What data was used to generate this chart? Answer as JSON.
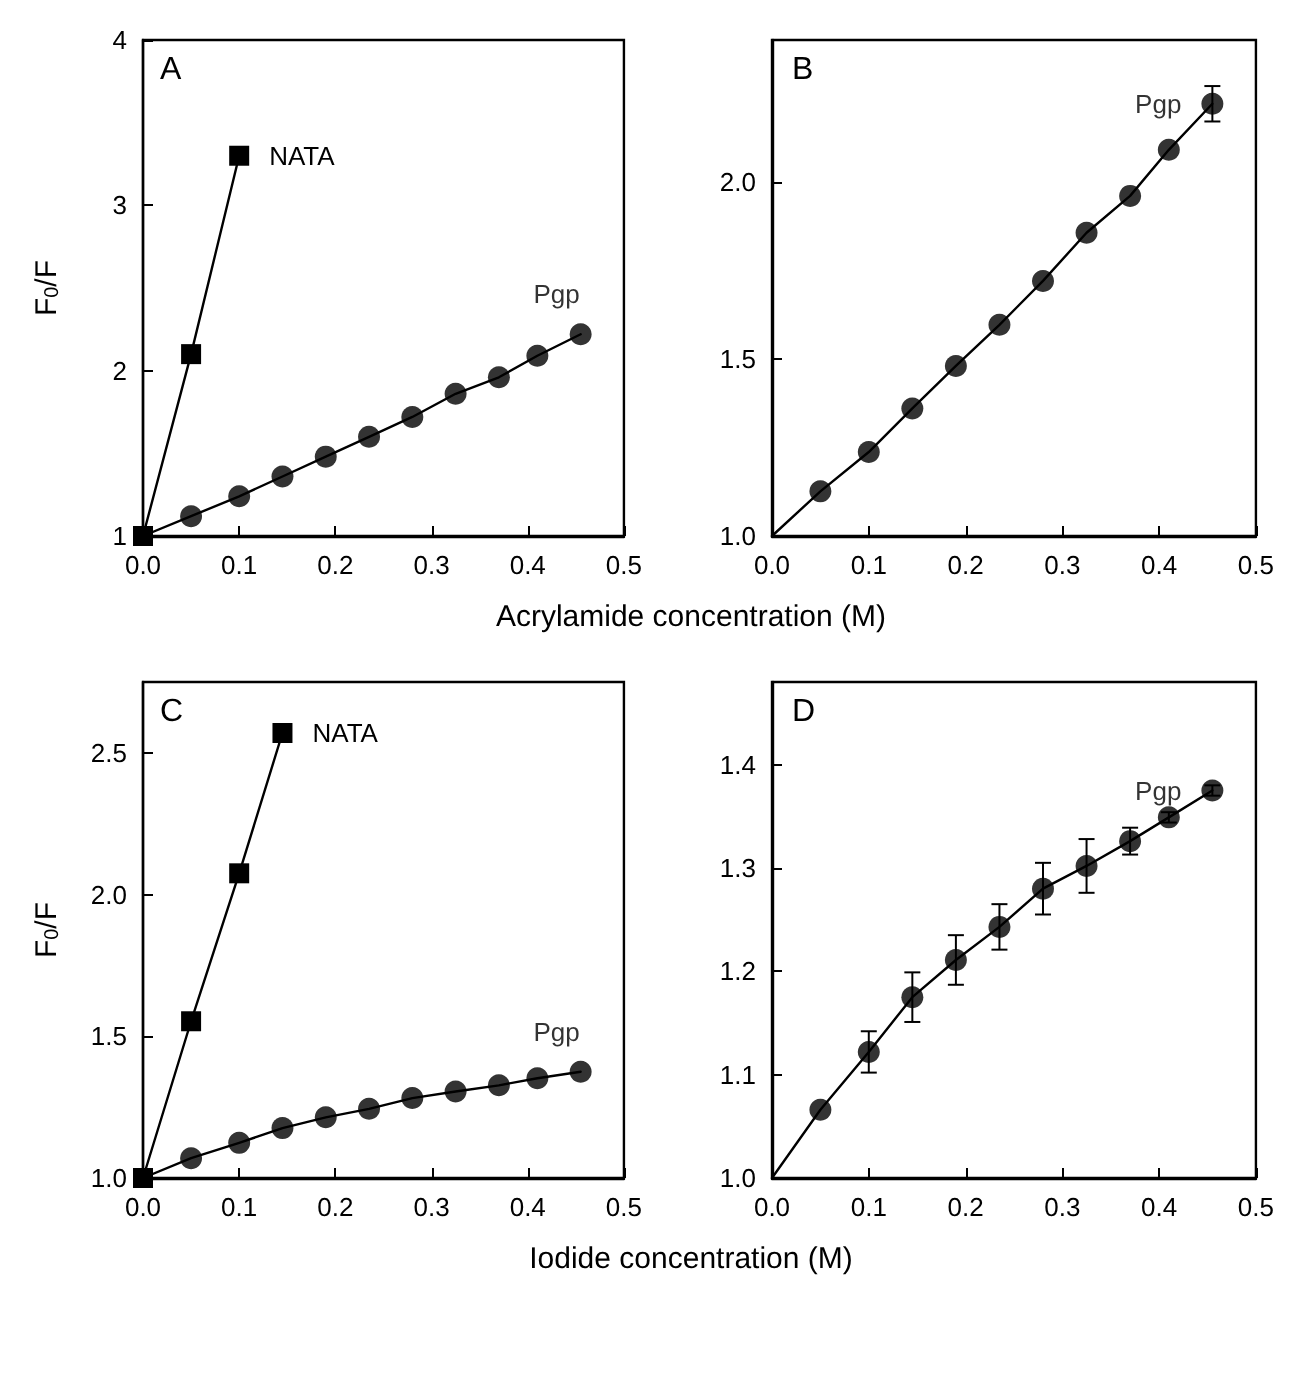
{
  "chart_data": [
    {
      "type": "line",
      "title": "A",
      "xlabel": "Acrylamide concentration (M)",
      "ylabel": "F$_{0}$/F",
      "xlim": [
        0,
        0.5
      ],
      "xticks": [
        {
          "value": 0,
          "label": "0.0"
        },
        {
          "value": 0.1,
          "label": "0.1"
        },
        {
          "value": 0.2,
          "label": "0.2"
        },
        {
          "value": 0.3,
          "label": "0.3"
        },
        {
          "value": 0.4,
          "label": "0.4"
        },
        {
          "value": 0.5,
          "label": "0.5"
        }
      ],
      "ylim": [
        1,
        4
      ],
      "yticks": [
        1,
        2,
        3,
        4
      ],
      "grid": false,
      "series": [
        {
          "type": "line",
          "color": "#000000",
          "marker": "none",
          "x": [
            0,
            0.05,
            0.1,
            0.145,
            0.19,
            0.235,
            0.28,
            0.325,
            0.37,
            0.41,
            0.455
          ],
          "values": [
            1,
            1.12,
            1.24,
            1.36,
            1.48,
            1.6,
            1.72,
            1.86,
            1.96,
            2.09,
            2.22
          ]
        },
        {
          "type": "scatter",
          "name": "Pgp",
          "color": "#000000",
          "marker": "circle",
          "x": [
            0.05,
            0.1,
            0.145,
            0.19,
            0.235,
            0.28,
            0.325,
            0.37,
            0.41,
            0.455
          ],
          "values": [
            1.12,
            1.24,
            1.36,
            1.48,
            1.6,
            1.72,
            1.86,
            1.96,
            2.09,
            2.22
          ]
        },
        {
          "name": "NATA",
          "color": "#000000",
          "marker": "square",
          "x": [
            0,
            0.05,
            0.1
          ],
          "values": [
            1,
            2.1,
            3.3
          ]
        }
      ]
    },
    {
      "type": "scatter",
      "title": "B",
      "xlim": [
        0,
        0.5
      ],
      "xticks": [
        {
          "value": 0,
          "label": "0.0"
        },
        {
          "value": 0.1,
          "label": "0.1"
        },
        {
          "value": 0.2,
          "label": "0.2"
        },
        {
          "value": 0.3,
          "label": "0.3"
        },
        {
          "value": 0.4,
          "label": "0.4"
        },
        {
          "value": 0.5,
          "label": "0.5"
        }
      ],
      "ylim": [
        1,
        2.4
      ],
      "yticks": [
        {
          "value": 1,
          "label": "1.0"
        },
        {
          "value": 1.5,
          "label": "1.5"
        },
        {
          "value": 2,
          "label": "2.0"
        }
      ],
      "grid": false,
      "series": [
        {
          "type": "line",
          "color": "#000000",
          "marker": "none",
          "x": [
            0,
            0.05,
            0.1,
            0.145,
            0.19,
            0.235,
            0.28,
            0.325,
            0.37,
            0.41,
            0.455
          ],
          "values": [
            1,
            1.126,
            1.237,
            1.36,
            1.48,
            1.596,
            1.72,
            1.856,
            1.96,
            2.09,
            2.22
          ]
        },
        {
          "name": "Pgp",
          "color": "#000000",
          "marker": "circle",
          "x": [
            0.05,
            0.1,
            0.145,
            0.19,
            0.235,
            0.28,
            0.325,
            0.37,
            0.41,
            0.455
          ],
          "values": [
            1.126,
            1.237,
            1.36,
            1.48,
            1.596,
            1.72,
            1.856,
            1.96,
            2.09,
            2.22
          ],
          "errors": [
            null,
            null,
            null,
            null,
            null,
            null,
            null,
            null,
            null,
            0.05
          ]
        }
      ]
    },
    {
      "type": "line",
      "title": "C",
      "xlabel": "Iodide concentration (M)",
      "ylabel": "F$_{0}$/F",
      "xlim": [
        0,
        0.5
      ],
      "xticks": [
        {
          "value": 0,
          "label": "0.0"
        },
        {
          "value": 0.1,
          "label": "0.1"
        },
        {
          "value": 0.2,
          "label": "0.2"
        },
        {
          "value": 0.3,
          "label": "0.3"
        },
        {
          "value": 0.4,
          "label": "0.4"
        },
        {
          "value": 0.5,
          "label": "0.5"
        }
      ],
      "ylim": [
        1,
        2.75
      ],
      "yticks": [
        {
          "value": 1,
          "label": "1.0"
        },
        {
          "value": 1.5,
          "label": "1.5"
        },
        {
          "value": 2,
          "label": "2.0"
        },
        {
          "value": 2.5,
          "label": "2.5"
        }
      ],
      "grid": false,
      "series": [
        {
          "type": "line",
          "color": "#000000",
          "marker": "none",
          "x": [
            0,
            0.05,
            0.1,
            0.145,
            0.19,
            0.235,
            0.28,
            0.325,
            0.37,
            0.41,
            0.455
          ],
          "values": [
            1,
            1.07,
            1.124,
            1.176,
            1.214,
            1.244,
            1.282,
            1.305,
            1.327,
            1.352,
            1.375
          ]
        },
        {
          "type": "scatter",
          "name": "Pgp",
          "color": "#000000",
          "marker": "circle",
          "x": [
            0.05,
            0.1,
            0.145,
            0.19,
            0.235,
            0.28,
            0.325,
            0.37,
            0.41,
            0.455
          ],
          "values": [
            1.07,
            1.124,
            1.176,
            1.214,
            1.244,
            1.282,
            1.305,
            1.327,
            1.352,
            1.375
          ]
        },
        {
          "name": "NATA",
          "color": "#000000",
          "marker": "square",
          "x": [
            0,
            0.05,
            0.1,
            0.145
          ],
          "values": [
            1,
            1.553,
            2.075,
            2.57
          ]
        }
      ]
    },
    {
      "type": "scatter",
      "title": "D",
      "xlim": [
        0,
        0.5
      ],
      "xticks": [
        {
          "value": 0,
          "label": "0.0"
        },
        {
          "value": 0.1,
          "label": "0.1"
        },
        {
          "value": 0.2,
          "label": "0.2"
        },
        {
          "value": 0.3,
          "label": "0.3"
        },
        {
          "value": 0.4,
          "label": "0.4"
        },
        {
          "value": 0.5,
          "label": "0.5"
        }
      ],
      "ylim": [
        1,
        1.48
      ],
      "yticks": [
        {
          "value": 1,
          "label": "1.0"
        },
        {
          "value": 1.1,
          "label": "1.1"
        },
        {
          "value": 1.2,
          "label": "1.2"
        },
        {
          "value": 1.3,
          "label": "1.3"
        },
        {
          "value": 1.4,
          "label": "1.4"
        }
      ],
      "grid": false,
      "series": [
        {
          "type": "line",
          "color": "#000000",
          "marker": "none",
          "x": [
            0,
            0.05,
            0.1,
            0.145,
            0.19,
            0.235,
            0.28,
            0.325,
            0.37,
            0.41,
            0.455
          ],
          "values": [
            1,
            1.066,
            1.122,
            1.175,
            1.211,
            1.243,
            1.28,
            1.302,
            1.326,
            1.349,
            1.375
          ]
        },
        {
          "name": "Pgp",
          "color": "#000000",
          "marker": "circle",
          "x": [
            0.05,
            0.1,
            0.145,
            0.19,
            0.235,
            0.28,
            0.325,
            0.37,
            0.41,
            0.455
          ],
          "values": [
            1.066,
            1.122,
            1.175,
            1.211,
            1.243,
            1.28,
            1.302,
            1.326,
            1.349,
            1.375
          ],
          "errors": [
            null,
            0.02,
            0.024,
            0.024,
            0.022,
            0.025,
            0.026,
            0.013,
            0.005,
            0.005
          ]
        }
      ]
    }
  ]
}
